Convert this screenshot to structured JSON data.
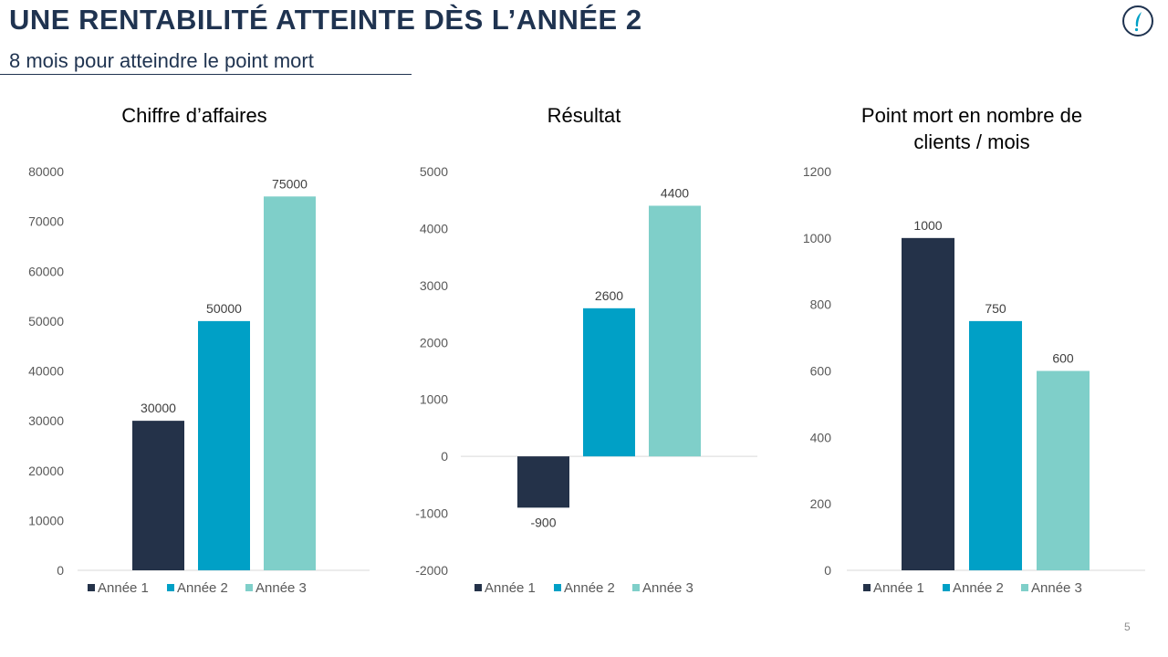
{
  "header": {
    "title": "UNE RENTABILITÉ ATTEINTE DÈS L’ANNÉE 2",
    "subtitle": "8 mois pour atteindre le point mort"
  },
  "footer": {
    "page_number": "5"
  },
  "logo": {
    "icon": "quill-logo-icon"
  },
  "colors": {
    "annee1": "#243249",
    "annee2": "#00a0c6",
    "annee3": "#7fcfc9",
    "axis": "#d9d9d9"
  },
  "chart_data": [
    {
      "type": "bar",
      "title": [
        "Chiffre d’affaires"
      ],
      "categories": [
        ""
      ],
      "series": [
        {
          "name": "Année 1",
          "values": [
            30000
          ]
        },
        {
          "name": "Année 2",
          "values": [
            50000
          ]
        },
        {
          "name": "Année 3",
          "values": [
            75000
          ]
        }
      ],
      "ylim": [
        0,
        80000
      ],
      "yticks": [
        0,
        10000,
        20000,
        30000,
        40000,
        50000,
        60000,
        70000,
        80000
      ],
      "data_labels": true,
      "grid": false,
      "legend": "bottom"
    },
    {
      "type": "bar",
      "title": [
        "Résultat"
      ],
      "categories": [
        ""
      ],
      "series": [
        {
          "name": "Année 1",
          "values": [
            -900
          ]
        },
        {
          "name": "Année 2",
          "values": [
            2600
          ]
        },
        {
          "name": "Année 3",
          "values": [
            4400
          ]
        }
      ],
      "ylim": [
        -2000,
        5000
      ],
      "yticks": [
        -2000,
        -1000,
        0,
        1000,
        2000,
        3000,
        4000,
        5000
      ],
      "data_labels": true,
      "grid": false,
      "legend": "bottom"
    },
    {
      "type": "bar",
      "title": [
        "Point mort en nombre de",
        "clients / mois"
      ],
      "categories": [
        ""
      ],
      "series": [
        {
          "name": "Année 1",
          "values": [
            1000
          ]
        },
        {
          "name": "Année 2",
          "values": [
            750
          ]
        },
        {
          "name": "Année 3",
          "values": [
            600
          ]
        }
      ],
      "ylim": [
        0,
        1200
      ],
      "yticks": [
        0,
        200,
        400,
        600,
        800,
        1000,
        1200
      ],
      "data_labels": true,
      "grid": false,
      "legend": "bottom"
    }
  ]
}
